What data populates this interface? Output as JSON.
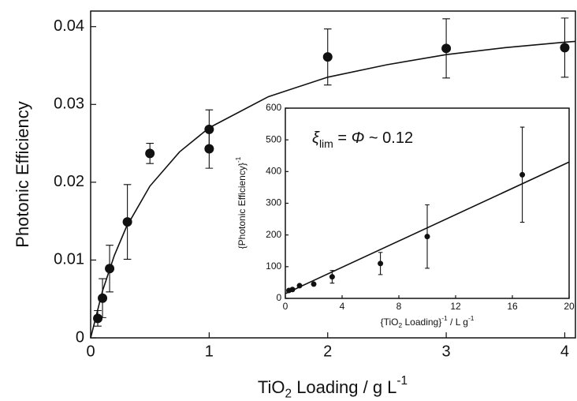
{
  "chart_data": [
    {
      "type": "scatter",
      "xlabel": [
        "TiO",
        "2",
        " Loading / g L",
        "-1"
      ],
      "ylabel": [
        "Photonic Efficiency"
      ],
      "xlim": [
        0,
        4.09
      ],
      "ylim": [
        0,
        0.042
      ],
      "xticks": [
        0,
        1,
        2,
        3,
        4
      ],
      "yticks": [
        0,
        0.01,
        0.02,
        0.03,
        0.04
      ],
      "series": [
        {
          "color": "#111",
          "x": [
            0.06,
            0.1,
            0.16,
            0.31,
            0.5,
            1.0,
            1.0,
            2.0,
            3.0,
            4.0
          ],
          "values": [
            0.0025,
            0.0051,
            0.0089,
            0.0149,
            0.0237,
            0.0268,
            0.0243,
            0.0361,
            0.0372,
            0.0373
          ],
          "errors": [
            0.001,
            0.0025,
            0.003,
            0.0048,
            0.0013,
            0.0025,
            0.0025,
            0.0036,
            0.0038,
            0.0038
          ]
        }
      ],
      "fit": {
        "color": "#111",
        "x": [
          0,
          0.1,
          0.2,
          0.3,
          0.5,
          0.75,
          1,
          1.5,
          2,
          2.5,
          3,
          3.5,
          4,
          4.09
        ],
        "values": [
          0,
          0.00603,
          0.0106,
          0.0142,
          0.0195,
          0.0239,
          0.027,
          0.031,
          0.0335,
          0.0351,
          0.0364,
          0.0373,
          0.038,
          0.0381
        ]
      }
    },
    {
      "type": "scatter",
      "xlabel": [
        "{TiO",
        "2",
        " Loading}",
        "-1",
        " / L g",
        "-1"
      ],
      "ylabel": [
        "{Photonic Efficiency}",
        "-1"
      ],
      "annotation": [
        "ξ",
        "lim",
        " = ",
        "Φ",
        " ~ 0.12"
      ],
      "xlim": [
        0,
        20
      ],
      "ylim": [
        0,
        600
      ],
      "xticks": [
        0,
        4,
        8,
        12,
        16,
        20
      ],
      "yticks": [
        0,
        100,
        200,
        300,
        400,
        500,
        600
      ],
      "series": [
        {
          "color": "#111",
          "x": [
            0.25,
            0.5,
            1,
            2,
            3.3,
            6.7,
            10,
            16.7
          ],
          "values": [
            25,
            28,
            40,
            45,
            68,
            110,
            195,
            390
          ],
          "errors": [
            0,
            0,
            0,
            0,
            20,
            35,
            100,
            150
          ]
        }
      ],
      "fit": {
        "color": "#111",
        "x": [
          0,
          20
        ],
        "values": [
          15,
          430
        ]
      }
    }
  ]
}
